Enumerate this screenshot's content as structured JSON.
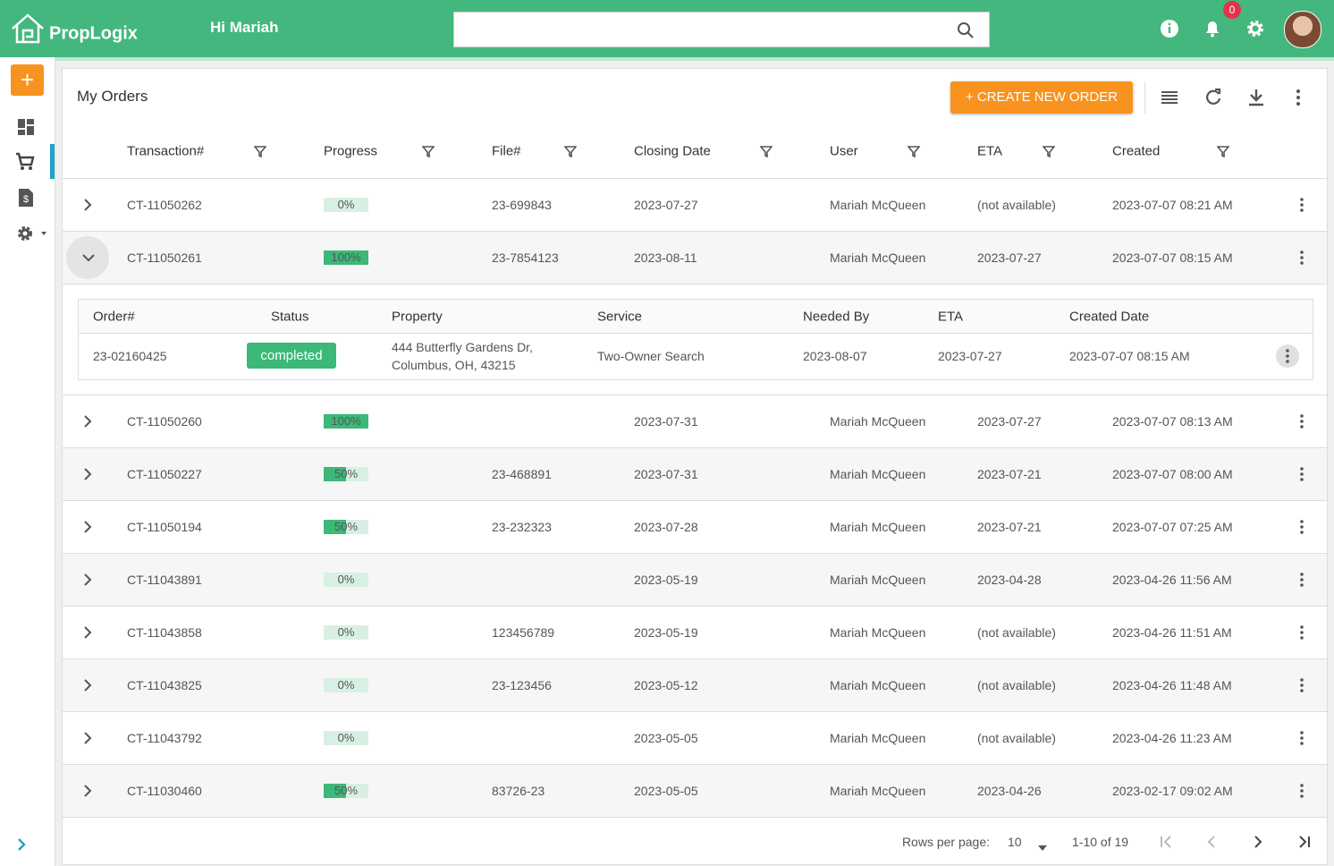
{
  "header": {
    "brand": "PropLogix",
    "greeting": "Hi Mariah",
    "notifications": 0
  },
  "orders": {
    "title": "My Orders",
    "create_button": "+ CREATE NEW ORDER",
    "columns": [
      "Transaction#",
      "Progress",
      "File#",
      "Closing Date",
      "User",
      "ETA",
      "Created"
    ],
    "rows": [
      {
        "transaction": "CT-11050262",
        "progress": {
          "value": 0,
          "label": "0%"
        },
        "file": "23-699843",
        "closing": "2023-07-27",
        "user": "Mariah McQueen",
        "eta": "(not available)",
        "created": "2023-07-07 08:21 AM"
      },
      {
        "transaction": "CT-11050261",
        "progress": {
          "value": 100,
          "label": "100%"
        },
        "file": "23-7854123",
        "closing": "2023-08-11",
        "user": "Mariah McQueen",
        "eta": "2023-07-27",
        "created": "2023-07-07 08:15 AM"
      },
      {
        "transaction": "CT-11050260",
        "progress": {
          "value": 100,
          "label": "100%"
        },
        "file": null,
        "closing": "2023-07-31",
        "user": "Mariah McQueen",
        "eta": "2023-07-27",
        "created": "2023-07-07 08:13 AM"
      },
      {
        "transaction": "CT-11050227",
        "progress": {
          "value": 50,
          "label": "50%"
        },
        "file": "23-468891",
        "closing": "2023-07-31",
        "user": "Mariah McQueen",
        "eta": "2023-07-21",
        "created": "2023-07-07 08:00 AM"
      },
      {
        "transaction": "CT-11050194",
        "progress": {
          "value": 50,
          "label": "50%"
        },
        "file": "23-232323",
        "closing": "2023-07-28",
        "user": "Mariah McQueen",
        "eta": "2023-07-21",
        "created": "2023-07-07 07:25 AM"
      },
      {
        "transaction": "CT-11043891",
        "progress": {
          "value": 0,
          "label": "0%"
        },
        "file": null,
        "closing": "2023-05-19",
        "user": "Mariah McQueen",
        "eta": "2023-04-28",
        "created": "2023-04-26 11:56 AM"
      },
      {
        "transaction": "CT-11043858",
        "progress": {
          "value": 0,
          "label": "0%"
        },
        "file": "123456789",
        "closing": "2023-05-19",
        "user": "Mariah McQueen",
        "eta": "(not available)",
        "created": "2023-04-26 11:51 AM"
      },
      {
        "transaction": "CT-11043825",
        "progress": {
          "value": 0,
          "label": "0%"
        },
        "file": "23-123456",
        "closing": "2023-05-12",
        "user": "Mariah McQueen",
        "eta": "(not available)",
        "created": "2023-04-26 11:48 AM"
      },
      {
        "transaction": "CT-11043792",
        "progress": {
          "value": 0,
          "label": "0%"
        },
        "file": null,
        "closing": "2023-05-05",
        "user": "Mariah McQueen",
        "eta": "(not available)",
        "created": "2023-04-26 11:23 AM"
      },
      {
        "transaction": "CT-11030460",
        "progress": {
          "value": 50,
          "label": "50%"
        },
        "file": "83726-23",
        "closing": "2023-05-05",
        "user": "Mariah McQueen",
        "eta": "2023-04-26",
        "created": "2023-02-17 09:02 AM"
      }
    ],
    "detail": {
      "columns": [
        "Order#",
        "Status",
        "Property",
        "Service",
        "Needed By",
        "ETA",
        "Created Date"
      ],
      "rows": [
        {
          "order": "23-02160425",
          "status": "completed",
          "property": [
            "444 Butterfly Gardens Dr,",
            "Columbus, OH, 43215"
          ],
          "service": "Two-Owner Search",
          "needed_by": "2023-08-07",
          "eta": "2023-07-27",
          "created": "2023-07-07 08:15 AM"
        }
      ]
    }
  },
  "pagination": {
    "rows_label": "Rows per page:",
    "rows_per_page": 10,
    "range": "1-10 of 19"
  }
}
